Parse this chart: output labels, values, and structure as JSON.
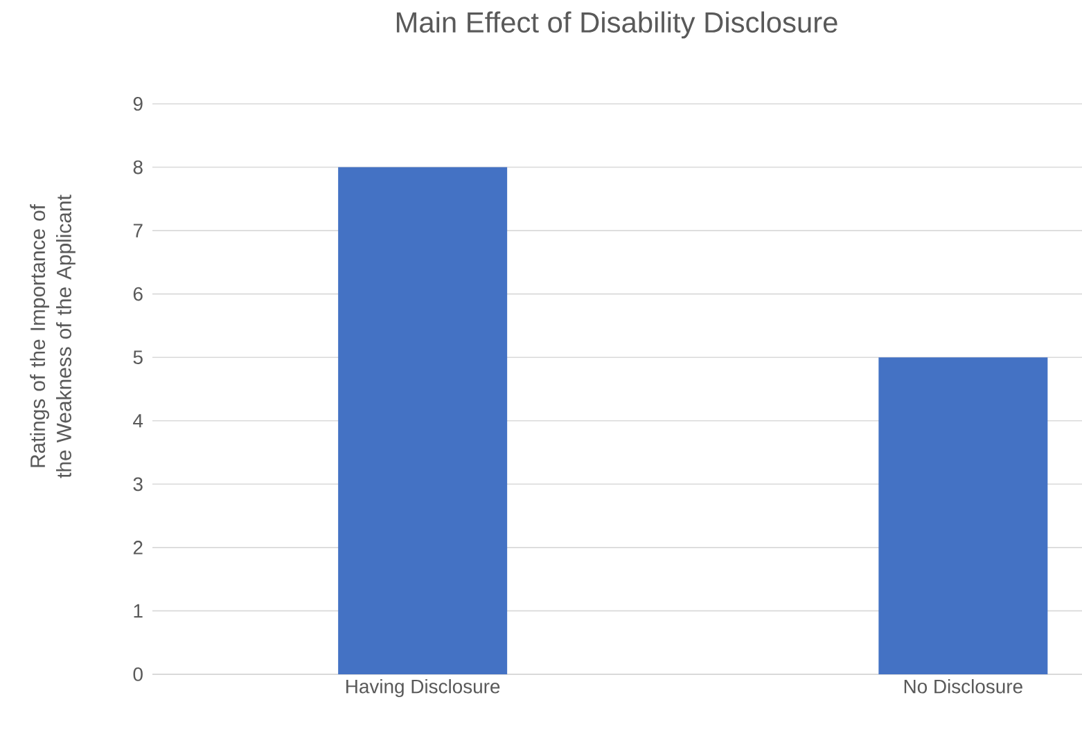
{
  "chart_data": {
    "type": "bar",
    "title": "Main Effect of Disability Disclosure",
    "ylabel": "Ratings of the Importance of the Weakness of the Applicant",
    "categories": [
      "Having Disclosure",
      "No Disclosure"
    ],
    "values": [
      8,
      5
    ],
    "color": "#4472c4",
    "ylim": [
      0,
      9
    ],
    "yticks": [
      0,
      1,
      2,
      3,
      4,
      5,
      6,
      7,
      8,
      9
    ],
    "grid": "y"
  }
}
